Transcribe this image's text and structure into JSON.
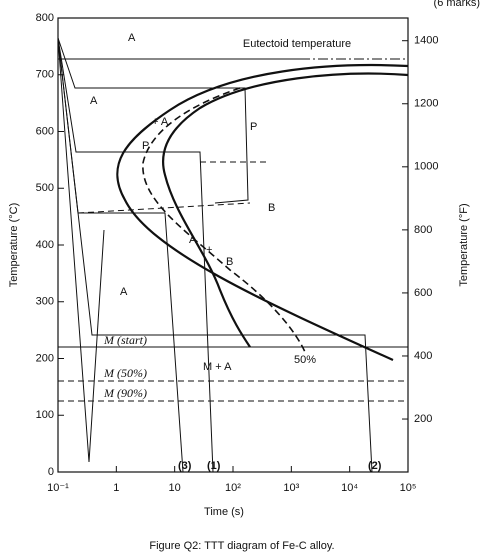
{
  "header": {
    "marks": "(6 marks)"
  },
  "diagram": {
    "type": "ttt",
    "xlabel": "Time (s)",
    "ylabel": "Temperature (°C)",
    "y2label": "Temperature (°F)",
    "xscale": "log",
    "xlim": [
      0.1,
      100000
    ],
    "xticks": [
      {
        "value": 0.1,
        "label": "10⁻¹"
      },
      1,
      10,
      {
        "value": 100,
        "label": "10²"
      },
      {
        "value": 1000,
        "label": "10³"
      },
      {
        "value": 10000,
        "label": "10⁴"
      },
      {
        "value": 100000,
        "label": "10⁵"
      }
    ],
    "ylim": [
      0,
      800
    ],
    "yticks": [
      0,
      100,
      200,
      300,
      400,
      500,
      600,
      700,
      800
    ],
    "y2lim": [
      32,
      1472
    ],
    "y2ticks": [
      200,
      400,
      600,
      800,
      1000,
      1200,
      1400
    ],
    "annotations": {
      "eutectoid": "Eutectoid temperature",
      "a_top": "A",
      "a_mid": "A",
      "a_low": "A",
      "p_right": "P",
      "p_left": "P",
      "plus_a": "+ A",
      "b_right": "B",
      "a_nose": "A",
      "plus": "+",
      "b_nose": "B",
      "m_plus_a": "M + A",
      "fifty": "50%",
      "m_start": "M (start)",
      "m_50": "M (50%)",
      "m_90": "M (90%)",
      "path3": "(3)",
      "path1": "(1)",
      "path2": "(2)"
    }
  },
  "caption": "Figure Q2: TTT diagram of Fe-C alloy."
}
